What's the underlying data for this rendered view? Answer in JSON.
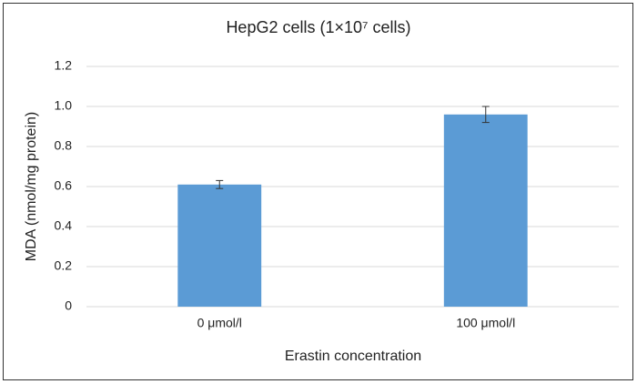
{
  "chart_data": {
    "type": "bar",
    "title": "HepG2 cells (1×10⁷ cells)",
    "x_label": "Erastin concentration",
    "y_label": "MDA (nmol/mg protein)",
    "categories": [
      "0 μmol/l",
      "100 μmol/l"
    ],
    "values": [
      0.61,
      0.96
    ],
    "errors": [
      0.02,
      0.04
    ],
    "color": "#5b9bd5",
    "ylim": [
      0,
      1.2
    ],
    "yticks": [
      0,
      0.2,
      0.4,
      0.6,
      0.8,
      {
        "value": 1.0,
        "label": "1.0"
      },
      1.2
    ],
    "grid": true
  }
}
